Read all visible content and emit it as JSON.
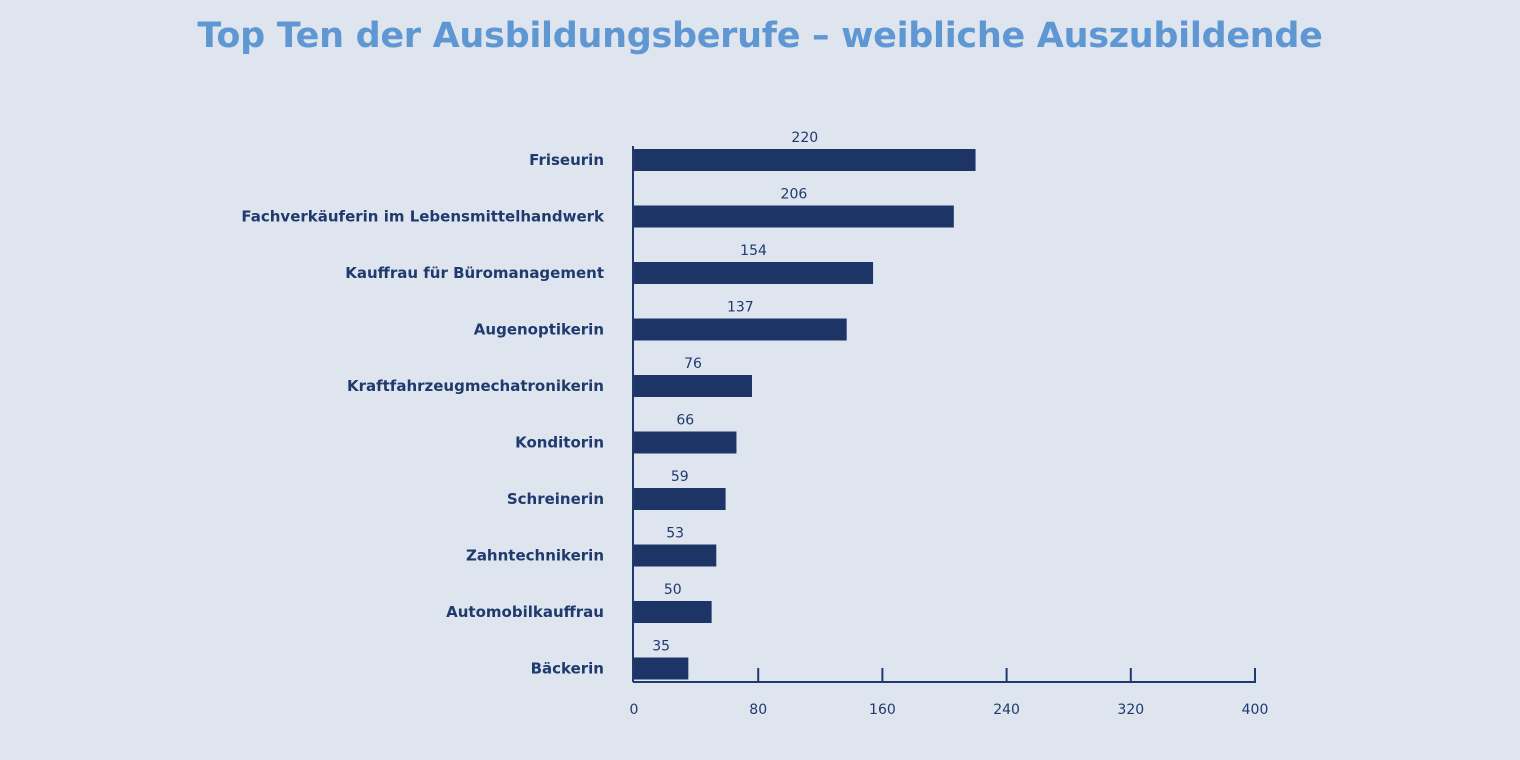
{
  "chart_data": {
    "type": "bar",
    "orientation": "horizontal",
    "title": "Top Ten der Ausbildungsberufe – weibliche Auszubildende",
    "categories": [
      "Friseurin",
      "Fachverkäuferin im Lebensmittelhandwerk",
      "Kauffrau für Büromanagement",
      "Augenoptikerin",
      "Kraftfahrzeugmechatronikerin",
      "Konditorin",
      "Schreinerin",
      "Zahntechnikerin",
      "Automobilkauffrau",
      "Bäckerin"
    ],
    "values": [
      220,
      206,
      154,
      137,
      76,
      66,
      59,
      53,
      50,
      35
    ],
    "value_labels": [
      "220",
      "206",
      "154",
      "137",
      "76",
      "66",
      "59",
      "53",
      "50",
      "35"
    ],
    "xlim": [
      0,
      400
    ],
    "x_ticks": [
      0,
      80,
      160,
      240,
      320,
      400
    ],
    "x_tick_labels": [
      "0",
      "80",
      "160",
      "240",
      "320",
      "400"
    ],
    "grid": false,
    "legend": "none",
    "colors": {
      "background": "#dfe5ee",
      "bar": "#1c3566",
      "title": "#5f97d3",
      "text": "#1e3a6e",
      "axis": "#1e3a6e"
    }
  }
}
